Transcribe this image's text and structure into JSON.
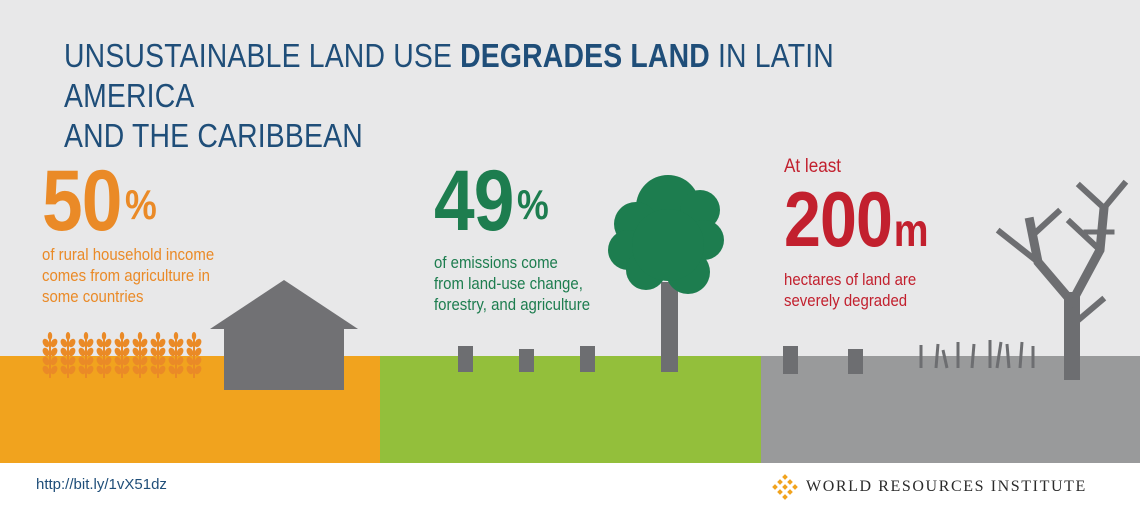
{
  "title": {
    "part1": "UNSUSTAINABLE LAND USE ",
    "bold": "DEGRADES LAND",
    "part2": " IN LATIN AMERICA",
    "line2": "AND THE CARIBBEAN"
  },
  "stats": [
    {
      "value": "50",
      "unit": "%",
      "caption_lines": [
        "of rural household income",
        "comes from agriculture in",
        "some countries"
      ],
      "color": "#ea8a27",
      "icons": [
        "wheat-icon",
        "house-icon"
      ]
    },
    {
      "value": "49",
      "unit": "%",
      "caption_lines": [
        "of emissions come",
        "from land-use change,",
        "forestry, and agriculture"
      ],
      "color": "#1d7d4f",
      "icons": [
        "tree-icon",
        "stump-icon"
      ]
    },
    {
      "prefix": "At least",
      "value": "200",
      "unit": "m",
      "caption_lines": [
        "hectares of land are",
        "severely degraded"
      ],
      "color": "#c2202e",
      "icons": [
        "dead-tree-icon",
        "stump-icon",
        "dead-grass-icon"
      ]
    }
  ],
  "ground_colors": [
    "#f1a31e",
    "#93bf3b",
    "#999a9b"
  ],
  "footer": {
    "url": "http://bit.ly/1vX51dz",
    "brand": "WORLD RESOURCES INSTITUTE"
  }
}
